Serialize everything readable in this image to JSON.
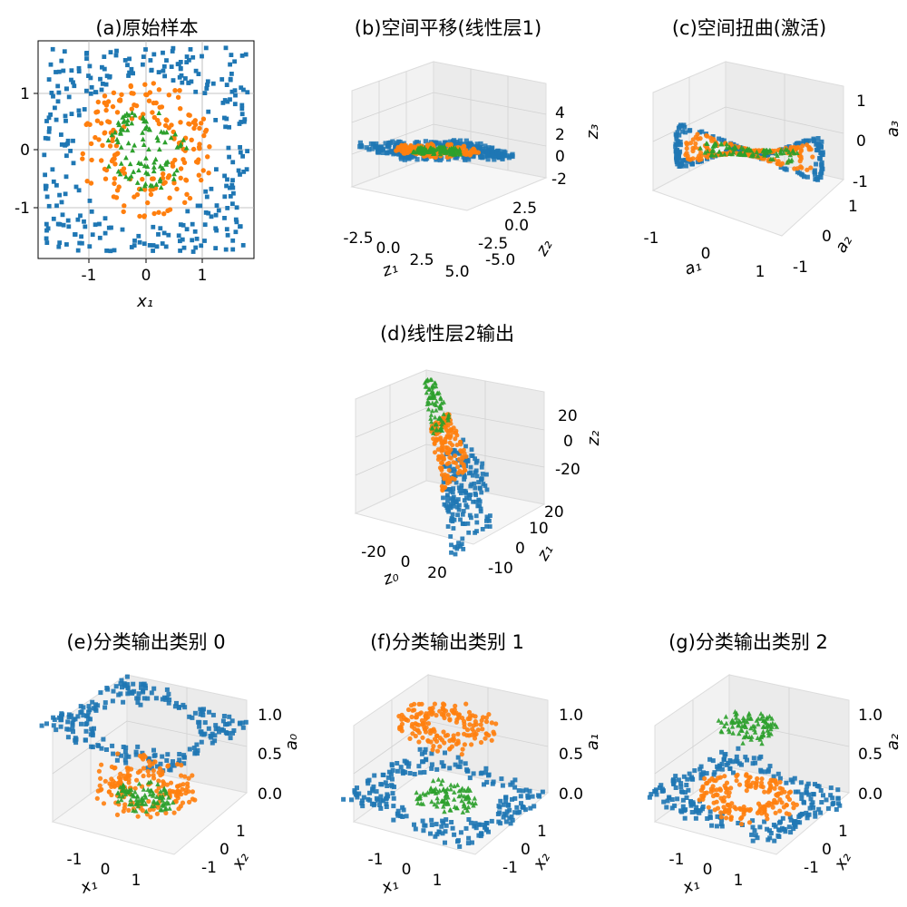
{
  "chart_data": [
    {
      "panel": "a",
      "type": "scatter",
      "title": "(a)原始样本",
      "xlabel": "x₁",
      "ylabel": "",
      "xlim": [
        -1.9,
        1.9
      ],
      "ylim": [
        -1.9,
        1.9
      ],
      "xticks": [
        "-1",
        "0",
        "1"
      ],
      "yticks": [
        "-1",
        "0",
        "1"
      ],
      "grid": true,
      "series": [
        {
          "class": 0,
          "marker": "square",
          "color": "#1f77b4",
          "region": "ring, radius 1.25 to 1.8"
        },
        {
          "class": 1,
          "marker": "circle",
          "color": "#ff7f0e",
          "region": "ring, radius 0.5 to 1.2"
        },
        {
          "class": 2,
          "marker": "triangle",
          "color": "#2ca02c",
          "region": "disc, radius 0 to 0.75"
        }
      ]
    },
    {
      "panel": "b",
      "type": "scatter3d",
      "title": "(b)空间平移(线性层1)",
      "xlabel": "z₁",
      "ylabel": "z₂",
      "zlabel": "z₃",
      "xticks": [
        "-2.5",
        "0.0",
        "2.5",
        "5.0"
      ],
      "yticks": [
        "-5.0",
        "-2.5",
        "0.0",
        "2.5"
      ],
      "zticks": [
        "-2",
        "0",
        "2",
        "4"
      ]
    },
    {
      "panel": "c",
      "type": "scatter3d",
      "title": "(c)空间扭曲(激活)",
      "xlabel": "a₁",
      "ylabel": "a₂",
      "zlabel": "a₃",
      "xticks": [
        "-1",
        "0",
        "1"
      ],
      "yticks": [
        "-1",
        "0",
        "1"
      ],
      "zticks": [
        "-1",
        "0",
        "1"
      ]
    },
    {
      "panel": "d",
      "type": "scatter3d",
      "title": "(d)线性层2输出",
      "xlabel": "z₀",
      "ylabel": "z₁",
      "zlabel": "z₂",
      "xticks": [
        "-20",
        "0",
        "20"
      ],
      "yticks": [
        "-10",
        "0",
        "10",
        "20"
      ],
      "zticks": [
        "-20",
        "0",
        "20"
      ]
    },
    {
      "panel": "e",
      "type": "scatter3d",
      "title": "(e)分类输出类别 0",
      "xlabel": "x₁",
      "ylabel": "x₂",
      "zlabel": "a₀",
      "xticks": [
        "-1",
        "0",
        "1"
      ],
      "yticks": [
        "-1",
        "0",
        "1"
      ],
      "zticks": [
        "0.0",
        "0.5",
        "1.0"
      ]
    },
    {
      "panel": "f",
      "type": "scatter3d",
      "title": "(f)分类输出类别 1",
      "xlabel": "x₁",
      "ylabel": "x₂",
      "zlabel": "a₁",
      "xticks": [
        "-1",
        "0",
        "1"
      ],
      "yticks": [
        "-1",
        "0",
        "1"
      ],
      "zticks": [
        "0.0",
        "0.5",
        "1.0"
      ]
    },
    {
      "panel": "g",
      "type": "scatter3d",
      "title": "(g)分类输出类别 2",
      "xlabel": "x₁",
      "ylabel": "x₂",
      "zlabel": "a₂",
      "xticks": [
        "-1",
        "0",
        "1"
      ],
      "yticks": [
        "-1",
        "0",
        "1"
      ],
      "zticks": [
        "0.0",
        "0.5",
        "1.0"
      ]
    }
  ]
}
